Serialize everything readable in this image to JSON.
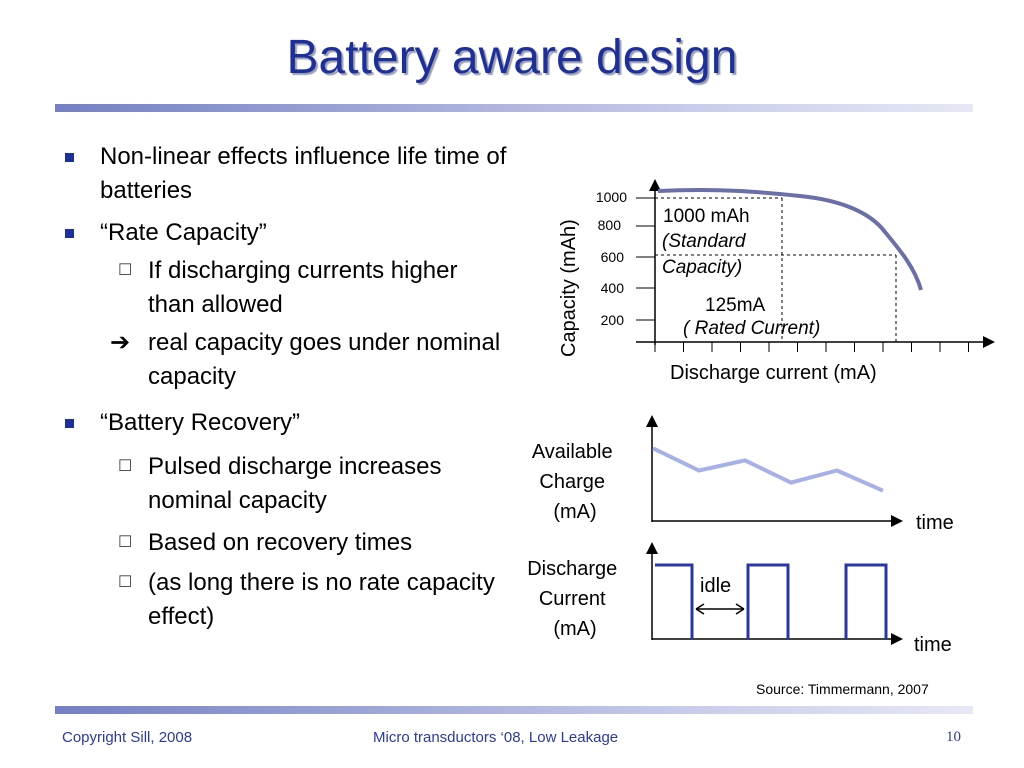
{
  "title": "Battery aware design",
  "bullets": {
    "b1": "Non-linear effects influence life time of batteries",
    "b2": "“Rate Capacity”",
    "b2a": "If discharging currents higher than allowed",
    "b2b": "real capacity goes under nominal capacity",
    "b3": "“Battery Recovery”",
    "b3a": "Pulsed discharge increases nominal capacity",
    "b3b": "Based on recovery times",
    "b3c": "(as long there is no rate capacity effect)"
  },
  "icons": {
    "square_bullet": "square-bullet-icon",
    "hollow_bullet": "hollow-square-icon",
    "arrow": "right-arrow-icon"
  },
  "colors": {
    "title": "#1f2f9a",
    "curve": "#6a6fa8",
    "light_curve": "#a8b0e8",
    "pulse": "#2a35a6"
  },
  "chart_data": [
    {
      "type": "line",
      "title": "",
      "xlabel": "Discharge current (mA)",
      "ylabel": "Capacity (mAh)",
      "y_ticks": [
        "1000",
        "800",
        "600",
        "400",
        "200"
      ],
      "series": [
        {
          "values": [
            1000,
            1000,
            995,
            985,
            960,
            880,
            720,
            450
          ]
        }
      ],
      "annotations": {
        "standard_capacity": "1000 mAh",
        "standard_note": "(Standard Capacity)",
        "rated_current": "125mA",
        "rated_note": "( Rated Current)"
      }
    },
    {
      "type": "line",
      "ylabel": "Available Charge (mA)",
      "xlabel": "time",
      "series": [
        {
          "values": [
            0.72,
            0.5,
            0.6,
            0.38,
            0.5,
            0.3
          ]
        }
      ]
    },
    {
      "type": "line",
      "ylabel": "Discharge Current (mA)",
      "xlabel": "time",
      "annotation": "idle",
      "series": [
        {
          "values": [
            1,
            0,
            1,
            0,
            1,
            0
          ]
        }
      ]
    }
  ],
  "source": "Source: Timmermann, 2007",
  "footer": {
    "copyright": "Copyright Sill, 2008",
    "event": "Micro transductors ‘08, Low Leakage",
    "page": "10"
  }
}
